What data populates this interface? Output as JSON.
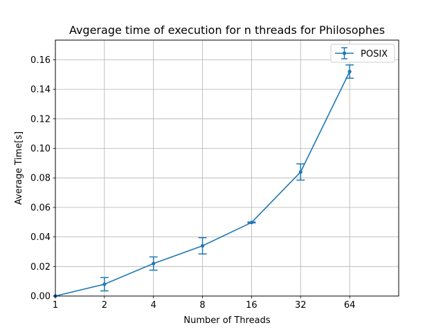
{
  "chart_data": {
    "type": "line",
    "title": "Avgerage time of execution for n threads for Philosophes",
    "xlabel": "Number of Threads",
    "ylabel": "Average Time[s]",
    "x_categories": [
      "1",
      "2",
      "4",
      "8",
      "16",
      "32",
      "64"
    ],
    "x_range_index": [
      0,
      7
    ],
    "ylim": [
      0,
      0.1733
    ],
    "y_ticks": [
      0.0,
      0.02,
      0.04,
      0.06,
      0.08,
      0.1,
      0.12,
      0.14,
      0.16
    ],
    "y_tick_labels": [
      "0.00",
      "0.02",
      "0.04",
      "0.06",
      "0.08",
      "0.10",
      "0.12",
      "0.14",
      "0.16"
    ],
    "grid": true,
    "legend_position": "top-right",
    "series": [
      {
        "name": "POSIX",
        "color": "#1f77b4",
        "x_index": [
          0,
          1,
          2,
          3,
          4,
          5,
          6
        ],
        "values": [
          0.0,
          0.008,
          0.022,
          0.034,
          0.0498,
          0.084,
          0.152
        ],
        "errors": [
          0.0,
          0.0045,
          0.0045,
          0.0055,
          0.0003,
          0.0055,
          0.0045
        ],
        "error_bar_indices": [
          1,
          2,
          3,
          4,
          5,
          6
        ]
      }
    ]
  }
}
